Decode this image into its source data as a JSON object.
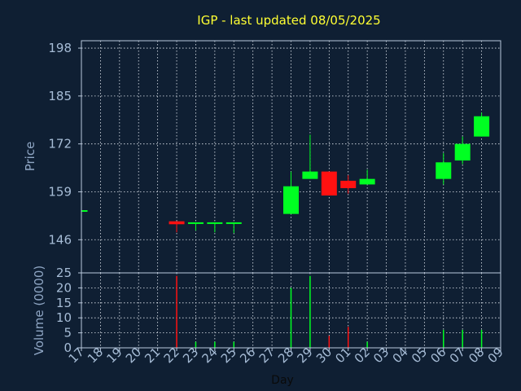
{
  "chart_data": {
    "type": "candlestick",
    "title": "IGP - last updated 08/05/2025",
    "xlabel": "Day",
    "ylabel_price": "Price",
    "ylabel_volume": "Volume (0000)",
    "price_ylim": [
      137,
      200
    ],
    "price_ticks": [
      "146",
      "159",
      "172",
      "185",
      "198"
    ],
    "volume_ylim": [
      0,
      25
    ],
    "volume_ticks": [
      "0",
      "5",
      "10",
      "15",
      "20",
      "25"
    ],
    "grid": true,
    "x_labels": [
      "17",
      "18",
      "19",
      "20",
      "21",
      "22",
      "23",
      "24",
      "25",
      "26",
      "27",
      "28",
      "29",
      "30",
      "01",
      "02",
      "03",
      "04",
      "05",
      "06",
      "07",
      "08",
      "09"
    ],
    "candles": [
      {
        "day": "17",
        "open": 153.8,
        "close": 153.8,
        "high": 153.8,
        "low": 153.8,
        "volume": 0
      },
      {
        "day": "22",
        "open": 151.0,
        "close": 150.2,
        "high": 151.0,
        "low": 148.0,
        "volume": 24
      },
      {
        "day": "23",
        "open": 150.5,
        "close": 150.5,
        "high": 150.5,
        "low": 148.5,
        "volume": 2
      },
      {
        "day": "24",
        "open": 150.5,
        "close": 150.5,
        "high": 150.5,
        "low": 148.0,
        "volume": 2
      },
      {
        "day": "25",
        "open": 150.5,
        "close": 150.5,
        "high": 150.5,
        "low": 147.8,
        "volume": 2
      },
      {
        "day": "28",
        "open": 153.0,
        "close": 160.5,
        "high": 164.5,
        "low": 153.0,
        "volume": 20
      },
      {
        "day": "29",
        "open": 162.5,
        "close": 164.5,
        "high": 174.5,
        "low": 162.5,
        "volume": 24
      },
      {
        "day": "30",
        "open": 164.5,
        "close": 158.0,
        "high": 164.5,
        "low": 158.0,
        "volume": 4
      },
      {
        "day": "01",
        "open": 162.0,
        "close": 160.0,
        "high": 163.5,
        "low": 158.5,
        "volume": 7
      },
      {
        "day": "02",
        "open": 161.0,
        "close": 162.5,
        "high": 165.0,
        "low": 161.0,
        "volume": 2
      },
      {
        "day": "06",
        "open": 162.5,
        "close": 167.0,
        "high": 169.5,
        "low": 161.0,
        "volume": 6
      },
      {
        "day": "07",
        "open": 167.5,
        "close": 172.0,
        "high": 174.0,
        "low": 166.5,
        "volume": 6
      },
      {
        "day": "08",
        "open": 174.0,
        "close": 179.5,
        "high": 180.5,
        "low": 174.0,
        "volume": 6
      }
    ]
  },
  "colors": {
    "background": "#0f1f33",
    "title": "#ffff33",
    "axis_label": "#8fa6c4",
    "tick_label": "#a6bcd6",
    "frame": "#b8c8dc",
    "grid": "#e2e8f0",
    "up": "#00ff22",
    "down": "#ff1111"
  }
}
